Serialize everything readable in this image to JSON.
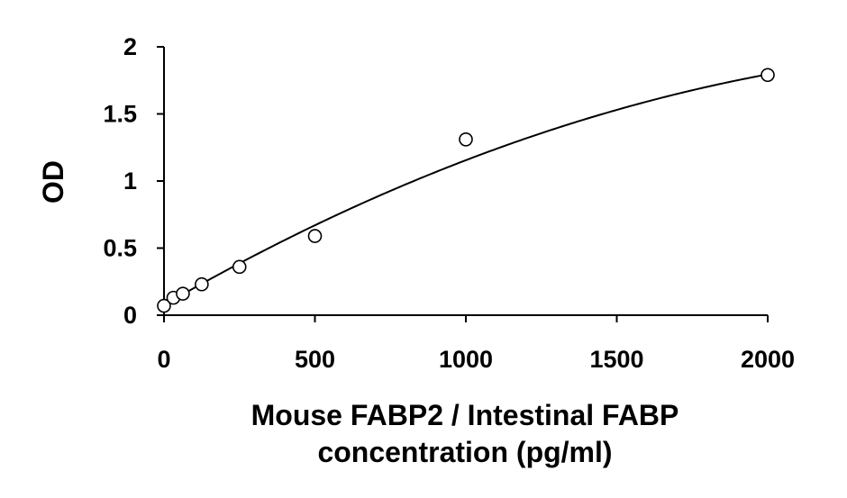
{
  "chart_data": {
    "type": "scatter",
    "title": "",
    "xlabel_lines": [
      "Mouse FABP2 / Intestinal FABP",
      "concentration (pg/ml)"
    ],
    "ylabel": "OD",
    "xlim": [
      0,
      2000
    ],
    "ylim": [
      0,
      2
    ],
    "xticks": [
      0,
      500,
      1000,
      1500,
      2000
    ],
    "xtick_labels": [
      "0",
      "500",
      "1000",
      "1500",
      "2000"
    ],
    "yticks": [
      0,
      0.5,
      1,
      1.5,
      2
    ],
    "ytick_labels": [
      "0",
      "0.5",
      "1",
      "1.5",
      "2"
    ],
    "grid": false,
    "legend": "none",
    "marker": "open-circle",
    "points": [
      {
        "x": 0,
        "y": 0.07
      },
      {
        "x": 31.25,
        "y": 0.13
      },
      {
        "x": 62.5,
        "y": 0.16
      },
      {
        "x": 125,
        "y": 0.23
      },
      {
        "x": 250,
        "y": 0.36
      },
      {
        "x": 500,
        "y": 0.59
      },
      {
        "x": 1000,
        "y": 1.31
      },
      {
        "x": 2000,
        "y": 1.79
      }
    ],
    "fit_curve": {
      "type": "polynomial",
      "description": "smooth fitted standard curve",
      "coefficients": [
        0.075,
        0.0013,
        -2.2e-07
      ]
    },
    "colors": {
      "marks": "#000000",
      "background": "#ffffff"
    }
  }
}
